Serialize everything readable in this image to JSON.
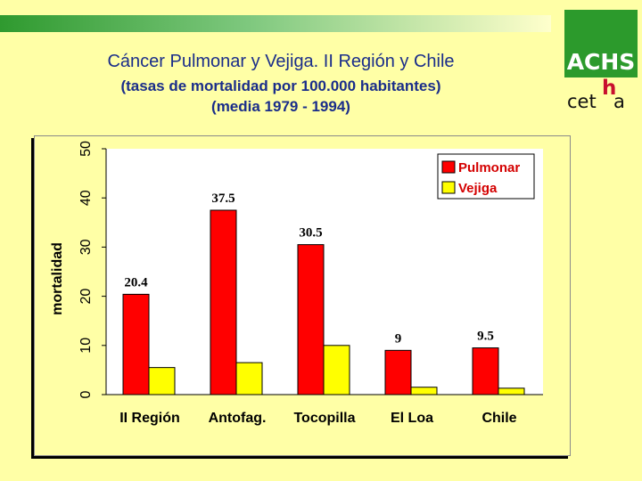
{
  "header": {
    "title": "Cáncer Pulmonar y Vejiga. II Región y Chile",
    "subtitle_line1": "(tasas de mortalidad por 100.000 habitantes)",
    "subtitle_line2": "(media 1979 - 1994)"
  },
  "logos": {
    "achs": "ACHS",
    "cetha_part1": "cet",
    "cetha_part2": "h",
    "cetha_part3": "a"
  },
  "chart_data": {
    "type": "bar",
    "ylabel": "mortalidad",
    "xlabel": "",
    "ylim": [
      0,
      50
    ],
    "yticks": [
      0,
      10,
      20,
      30,
      40,
      50
    ],
    "categories": [
      "II Región",
      "Antofag.",
      "Tocopilla",
      "El Loa",
      "Chile"
    ],
    "series": [
      {
        "name": "Pulmonar",
        "color": "#ff0000",
        "values": [
          20.4,
          37.5,
          30.5,
          9,
          9.5
        ]
      },
      {
        "name": "Vejiga",
        "color": "#ffff00",
        "values": [
          5.5,
          6.5,
          10,
          1.5,
          1.3
        ]
      }
    ],
    "data_labels": [
      "20.4",
      "37.5",
      "30.5",
      "9",
      "9.5"
    ],
    "legend_position": "top-right",
    "grid": false
  }
}
